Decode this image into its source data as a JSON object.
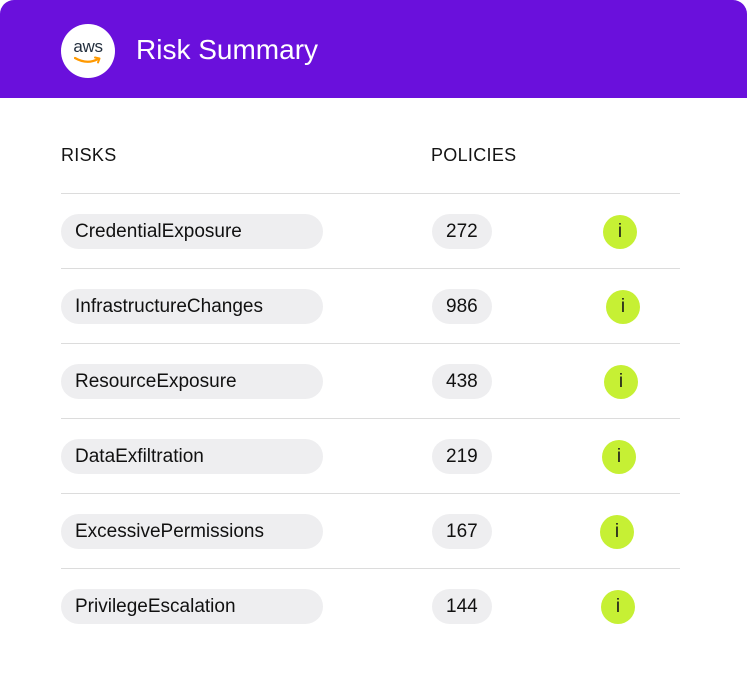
{
  "header": {
    "logo_text": "aws",
    "title": "Risk Summary"
  },
  "columns": {
    "risks": "RISKS",
    "policies": "POLICIES"
  },
  "rows": [
    {
      "risk": "CredentialExposure",
      "policies": "272",
      "info": "i"
    },
    {
      "risk": "InfrastructureChanges",
      "policies": "986",
      "info": "i"
    },
    {
      "risk": "ResourceExposure",
      "policies": "438",
      "info": "i"
    },
    {
      "risk": "DataExfiltration",
      "policies": "219",
      "info": "i"
    },
    {
      "risk": "ExcessivePermissions",
      "policies": "167",
      "info": "i"
    },
    {
      "risk": "PrivilegeEscalation",
      "policies": "144",
      "info": "i"
    }
  ],
  "colors": {
    "header": "#6a10dc",
    "info_badge": "#c6f034",
    "pill": "#eeeef0"
  },
  "icons": {
    "logo": "aws-logo-icon",
    "info": "info-icon"
  }
}
